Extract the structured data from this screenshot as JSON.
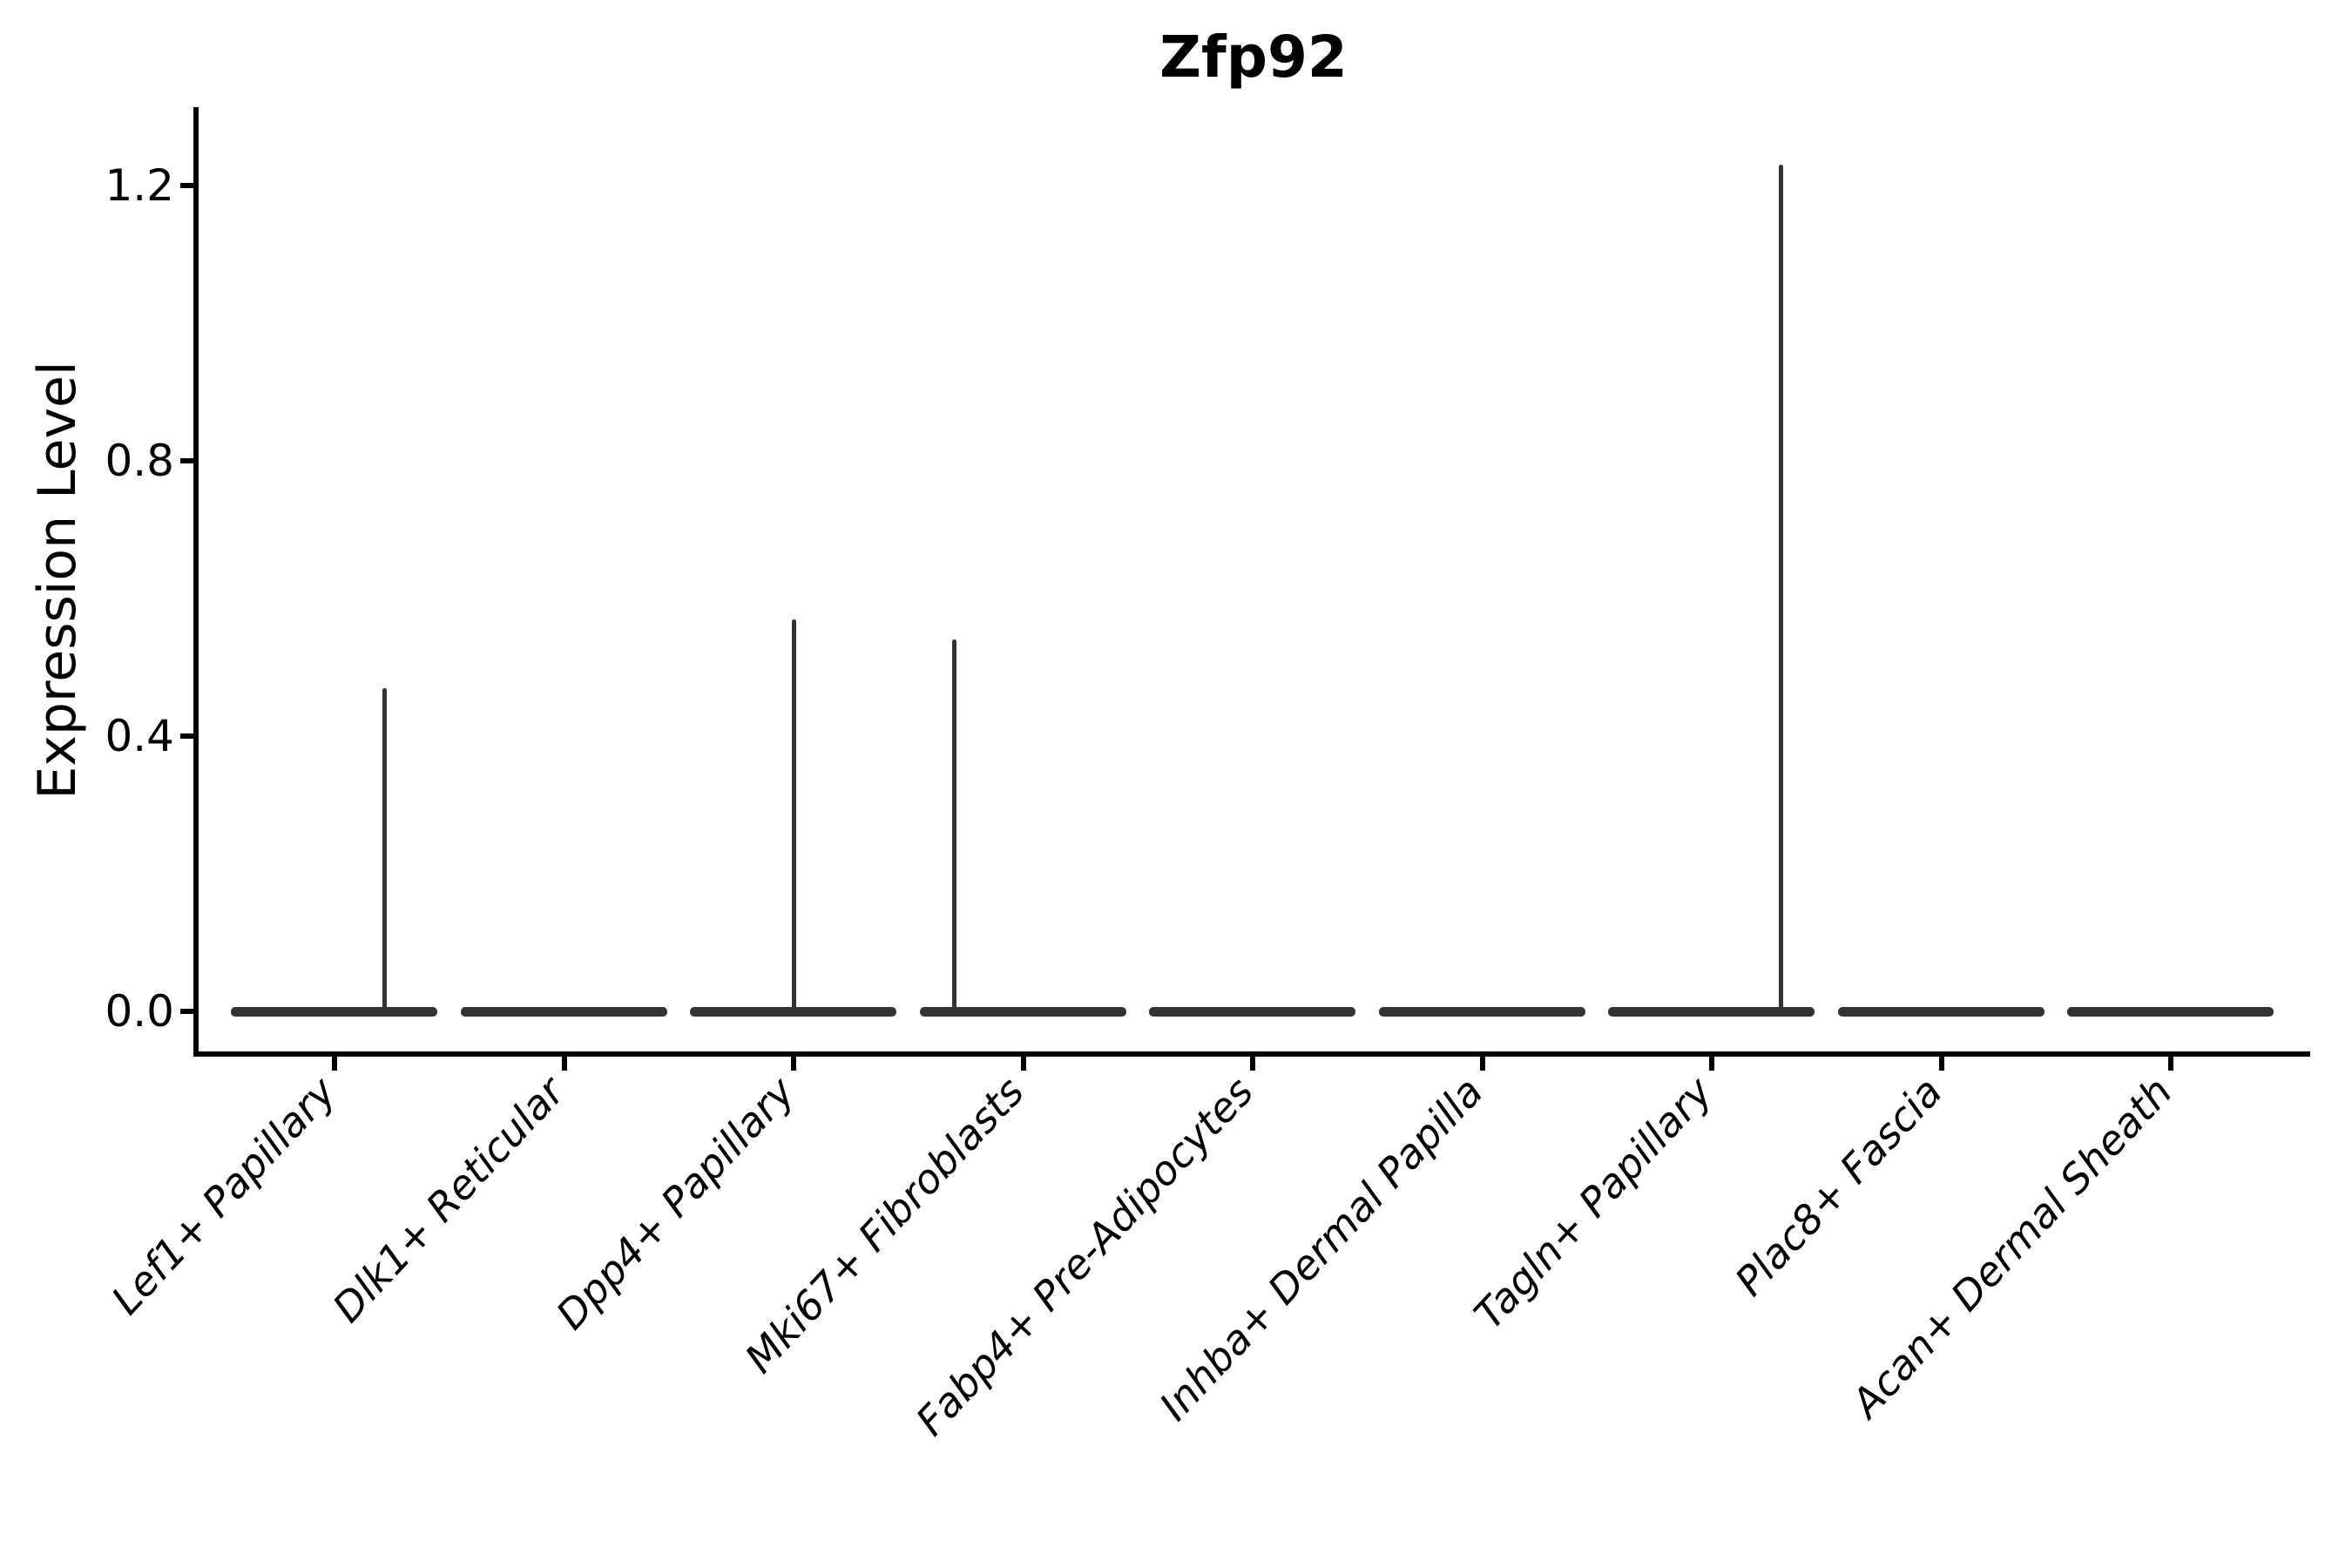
{
  "figure": {
    "title": "Zfp92",
    "y_axis_label": "Expression Level"
  },
  "chart_data": {
    "type": "violin",
    "title": "Zfp92",
    "xlabel": "",
    "ylabel": "Expression Level",
    "ylim": [
      -0.06,
      1.31
    ],
    "grid": false,
    "legend": "none",
    "violin_width": 0.9,
    "violin_color": "#333333",
    "axis_color": "#000000",
    "background_color": "#ffffff",
    "y_ticks": [
      {
        "value": 0.0,
        "label": "0.0"
      },
      {
        "value": 0.4,
        "label": "0.4"
      },
      {
        "value": 0.8,
        "label": "0.8"
      },
      {
        "value": 1.2,
        "label": "1.2"
      }
    ],
    "categories": [
      {
        "label": "Lef1+ Papillary",
        "max_expression": 0.47,
        "spike_offset": 0.22
      },
      {
        "label": "Dlk1+ Reticular",
        "max_expression": 0.0,
        "spike_offset": 0
      },
      {
        "label": "Dpp4+ Papillary",
        "max_expression": 0.57,
        "spike_offset": 0.0
      },
      {
        "label": "Mki67+ Fibroblasts",
        "max_expression": 0.54,
        "spike_offset": -0.3
      },
      {
        "label": "Fabp4+ Pre-Adipocytes",
        "max_expression": 0.0,
        "spike_offset": 0
      },
      {
        "label": "Inhba+ Dermal Papilla",
        "max_expression": 0.0,
        "spike_offset": 0
      },
      {
        "label": "Tagln+ Papillary",
        "max_expression": 1.23,
        "spike_offset": 0.3
      },
      {
        "label": "Plac8+ Fascia",
        "max_expression": 0.0,
        "spike_offset": 0
      },
      {
        "label": "Acan+ Dermal Sheath",
        "max_expression": 0.0,
        "spike_offset": 0
      }
    ]
  }
}
